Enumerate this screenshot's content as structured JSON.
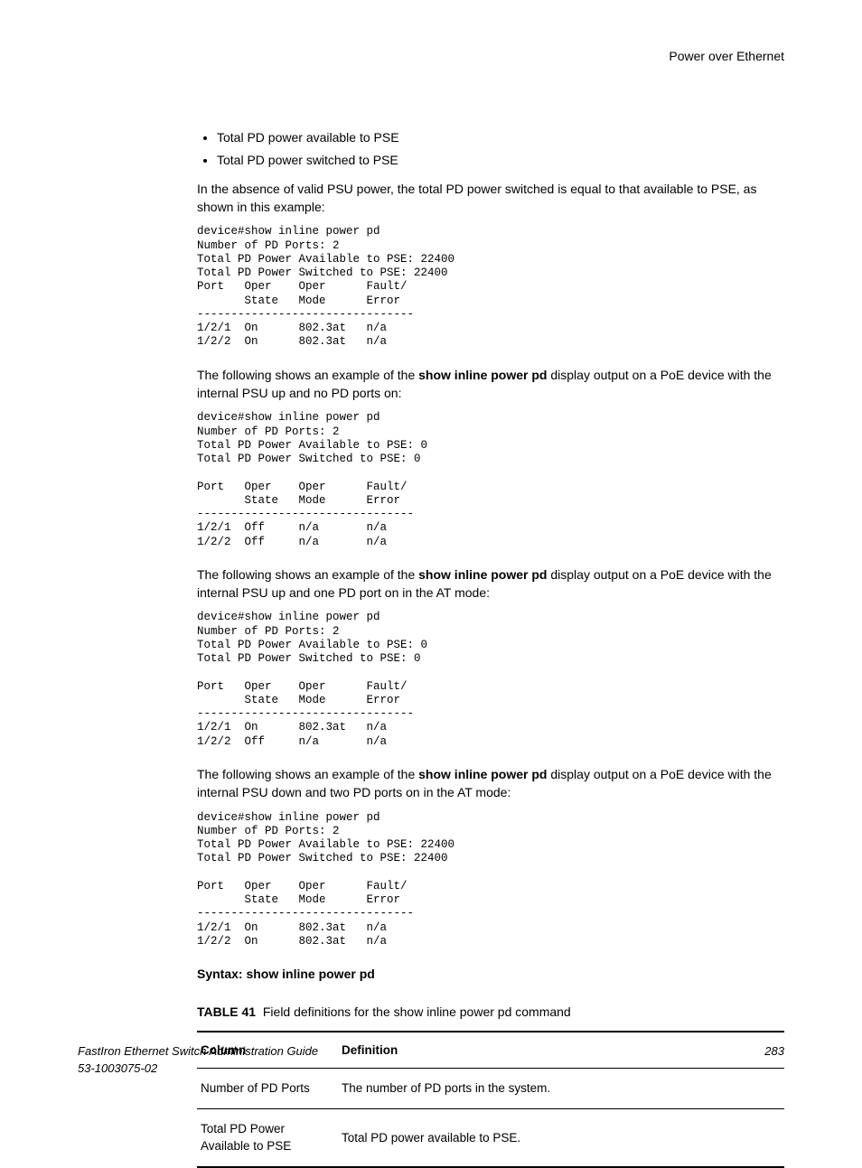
{
  "header": {
    "chapter": "Power over Ethernet"
  },
  "bullets": [
    "Total PD power available to PSE",
    "Total PD power switched to PSE"
  ],
  "para1": "In the absence of valid PSU power, the total PD power switched is equal to that available to PSE, as shown in this example:",
  "code1": "device#show inline power pd\nNumber of PD Ports: 2\nTotal PD Power Available to PSE: 22400\nTotal PD Power Switched to PSE: 22400\nPort   Oper    Oper      Fault/\n       State   Mode      Error\n--------------------------------\n1/2/1  On      802.3at   n/a\n1/2/2  On      802.3at   n/a",
  "para2_pre": "The following shows an example of the ",
  "para2_cmd": "show inline power pd",
  "para2_post": " display output on a PoE device with the internal PSU up and no PD ports on:",
  "code2": "device#show inline power pd \nNumber of PD Ports: 2\nTotal PD Power Available to PSE: 0\nTotal PD Power Switched to PSE: 0\n\nPort   Oper    Oper      Fault/\n       State   Mode      Error\n--------------------------------\n1/2/1  Off     n/a       n/a\n1/2/2  Off     n/a       n/a",
  "para3_pre": "The following shows an example of the ",
  "para3_cmd": "show inline power pd",
  "para3_post": " display output on a PoE device with the internal PSU up and one PD port on in the AT mode:",
  "code3": "device#show inline power pd \nNumber of PD Ports: 2\nTotal PD Power Available to PSE: 0\nTotal PD Power Switched to PSE: 0\n\nPort   Oper    Oper      Fault/\n       State   Mode      Error\n--------------------------------\n1/2/1  On      802.3at   n/a\n1/2/2  Off     n/a       n/a",
  "para4_pre": "The following shows an example of the ",
  "para4_cmd": "show inline power pd",
  "para4_post": " display output on a PoE device with the internal PSU down and two PD ports on in the AT mode:",
  "code4": "device#show inline power pd \nNumber of PD Ports: 2\nTotal PD Power Available to PSE: 22400\nTotal PD Power Switched to PSE: 22400\n\nPort   Oper    Oper      Fault/\n       State   Mode      Error\n--------------------------------\n1/2/1  On      802.3at   n/a\n1/2/2  On      802.3at   n/a",
  "syntax": "Syntax: show inline power pd",
  "table": {
    "label": "TABLE 41",
    "caption": "Field definitions for the show inline power pd command",
    "headers": {
      "col": "Column",
      "def": "Definition"
    },
    "rows": [
      {
        "col": "Number of PD Ports",
        "def": "The number of PD ports in the system."
      },
      {
        "col": "Total PD Power Available to PSE",
        "def": "Total PD power available to PSE."
      }
    ]
  },
  "footer": {
    "title": "FastIron Ethernet Switch Administration Guide",
    "docnum": "53-1003075-02",
    "page": "283"
  }
}
